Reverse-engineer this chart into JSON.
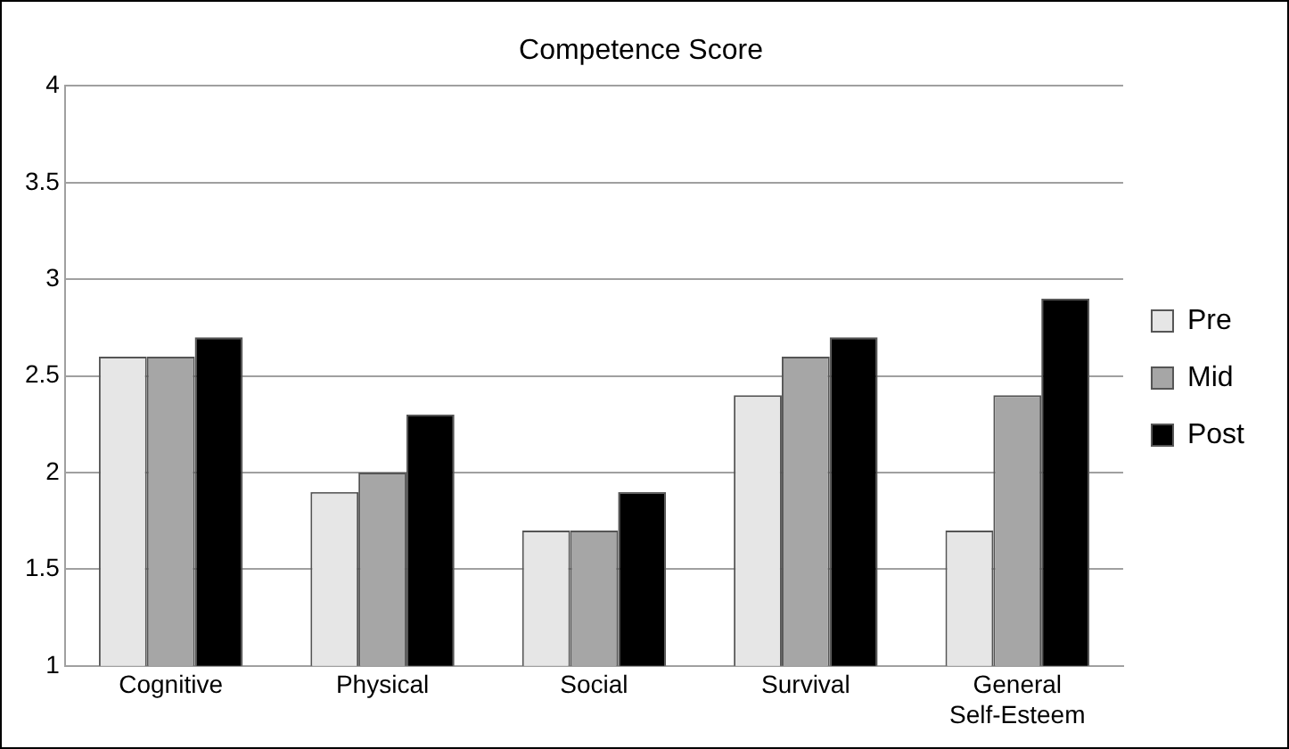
{
  "chart_data": {
    "type": "bar",
    "title": "Competence Score",
    "categories": [
      "Cognitive",
      "Physical",
      "Social",
      "Survival",
      "General Self-Esteem"
    ],
    "series": [
      {
        "name": "Pre",
        "color": "#e6e6e6",
        "values": [
          2.6,
          1.9,
          1.7,
          2.4,
          1.7
        ]
      },
      {
        "name": "Mid",
        "color": "#a6a6a6",
        "values": [
          2.6,
          2.0,
          1.7,
          2.6,
          2.4
        ]
      },
      {
        "name": "Post",
        "color": "#000000",
        "values": [
          2.7,
          2.3,
          1.9,
          2.7,
          2.9
        ]
      }
    ],
    "ylim": [
      1,
      4
    ],
    "yticks": [
      1,
      1.5,
      2,
      2.5,
      3,
      3.5,
      4
    ],
    "grid": "y",
    "legend": "right"
  }
}
